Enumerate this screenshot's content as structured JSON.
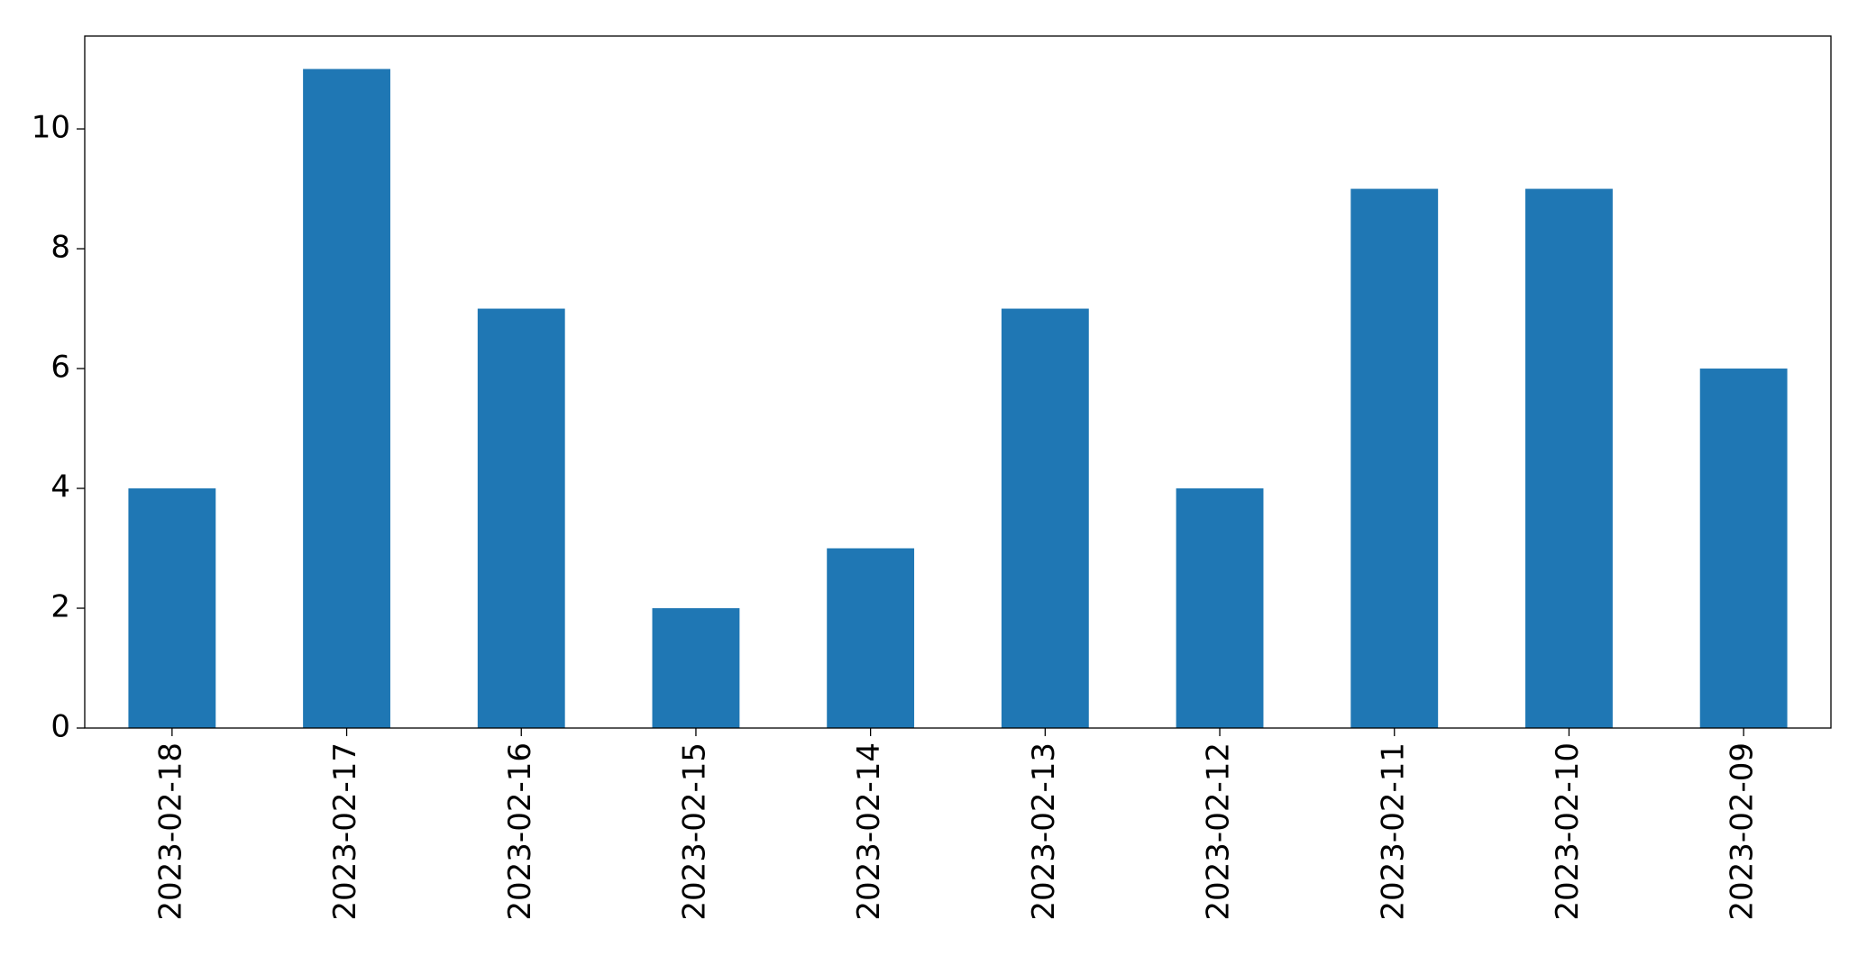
{
  "chart_data": {
    "type": "bar",
    "categories": [
      "2023-02-18",
      "2023-02-17",
      "2023-02-16",
      "2023-02-15",
      "2023-02-14",
      "2023-02-13",
      "2023-02-12",
      "2023-02-11",
      "2023-02-10",
      "2023-02-09"
    ],
    "values": [
      4,
      11,
      7,
      2,
      3,
      7,
      4,
      9,
      9,
      6
    ],
    "color": "#1f77b4",
    "ylim": [
      0,
      11.55
    ],
    "yticks": [
      0,
      2,
      4,
      6,
      8,
      10
    ],
    "grid": false
  }
}
